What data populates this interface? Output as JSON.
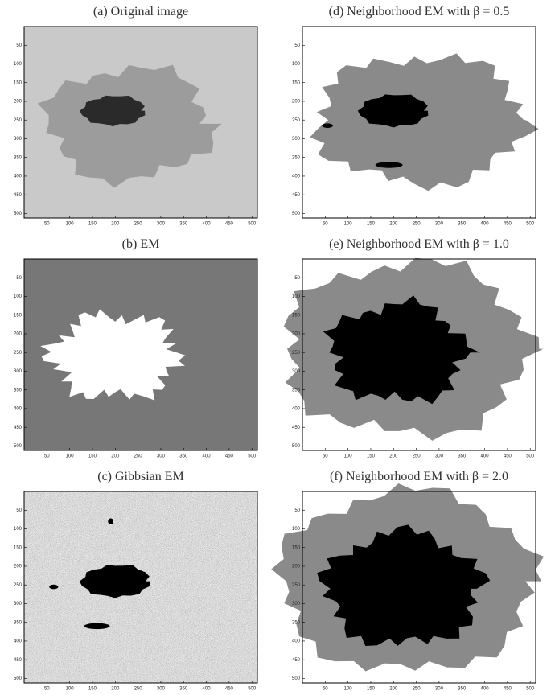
{
  "panels": [
    {
      "title": "(a) Original image"
    },
    {
      "title": "(d) Neighborhood EM with β = 0.5"
    },
    {
      "title": "(b) EM"
    },
    {
      "title": "(e) Neighborhood EM with β = 1.0"
    },
    {
      "title": "(c) Gibbsian EM"
    },
    {
      "title": "(f) Neighborhood EM with β = 2.0"
    }
  ],
  "axes": {
    "xlim": [
      0,
      512
    ],
    "ylim": [
      0,
      512
    ],
    "xticks": [
      50,
      100,
      150,
      200,
      250,
      300,
      350,
      400,
      450,
      500
    ],
    "yticks": [
      50,
      100,
      150,
      200,
      250,
      300,
      350,
      400,
      450,
      500
    ]
  }
}
